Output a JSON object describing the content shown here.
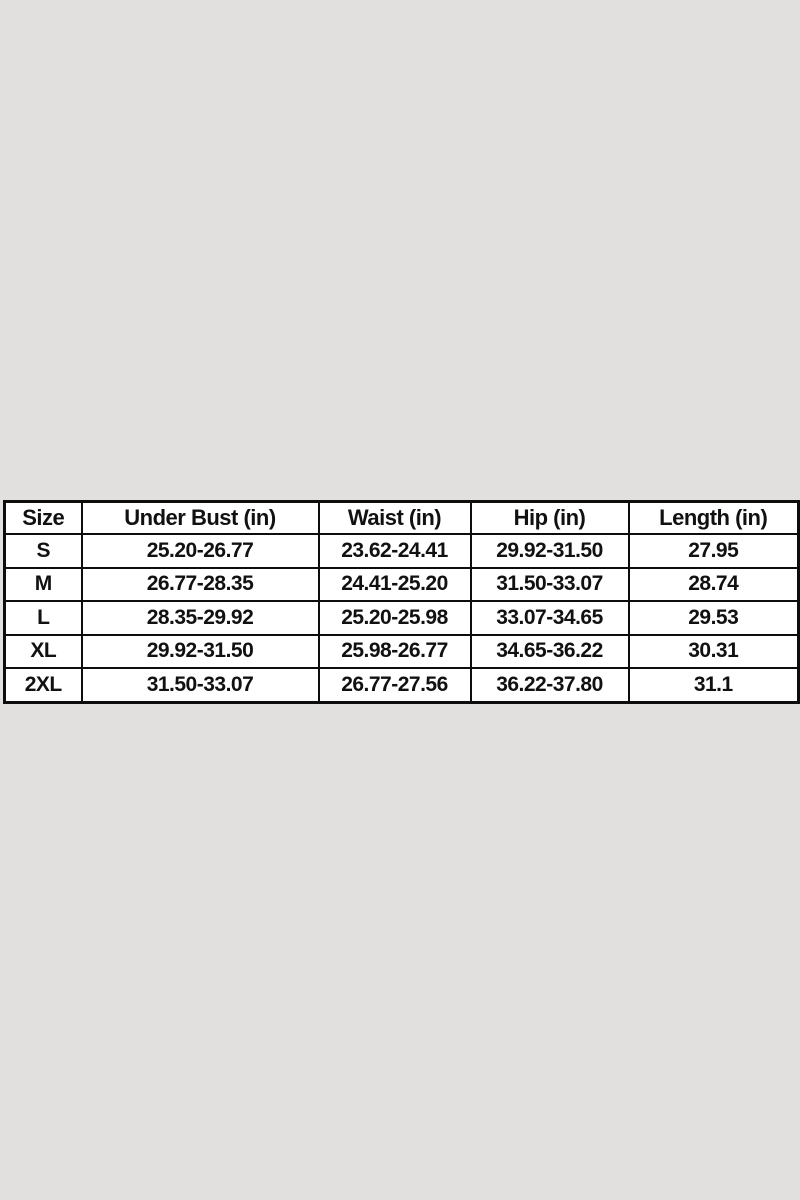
{
  "colors": {
    "page_background": "#e1e0de",
    "table_background": "#ffffff",
    "table_border": "#0d0d0d",
    "text": "#111111"
  },
  "chart_data": {
    "type": "table",
    "title": "",
    "columns": [
      "Size",
      "Under Bust (in)",
      "Waist (in)",
      "Hip (in)",
      "Length (in)"
    ],
    "rows": [
      {
        "size": "S",
        "under_bust": "25.20-26.77",
        "waist": "23.62-24.41",
        "hip": "29.92-31.50",
        "length": "27.95"
      },
      {
        "size": "M",
        "under_bust": "26.77-28.35",
        "waist": "24.41-25.20",
        "hip": "31.50-33.07",
        "length": "28.74"
      },
      {
        "size": "L",
        "under_bust": "28.35-29.92",
        "waist": "25.20-25.98",
        "hip": "33.07-34.65",
        "length": "29.53"
      },
      {
        "size": "XL",
        "under_bust": "29.92-31.50",
        "waist": "25.98-26.77",
        "hip": "34.65-36.22",
        "length": "30.31"
      },
      {
        "size": "2XL",
        "under_bust": "31.50-33.07",
        "waist": "26.77-27.56",
        "hip": "36.22-37.80",
        "length": "31.1"
      }
    ]
  }
}
